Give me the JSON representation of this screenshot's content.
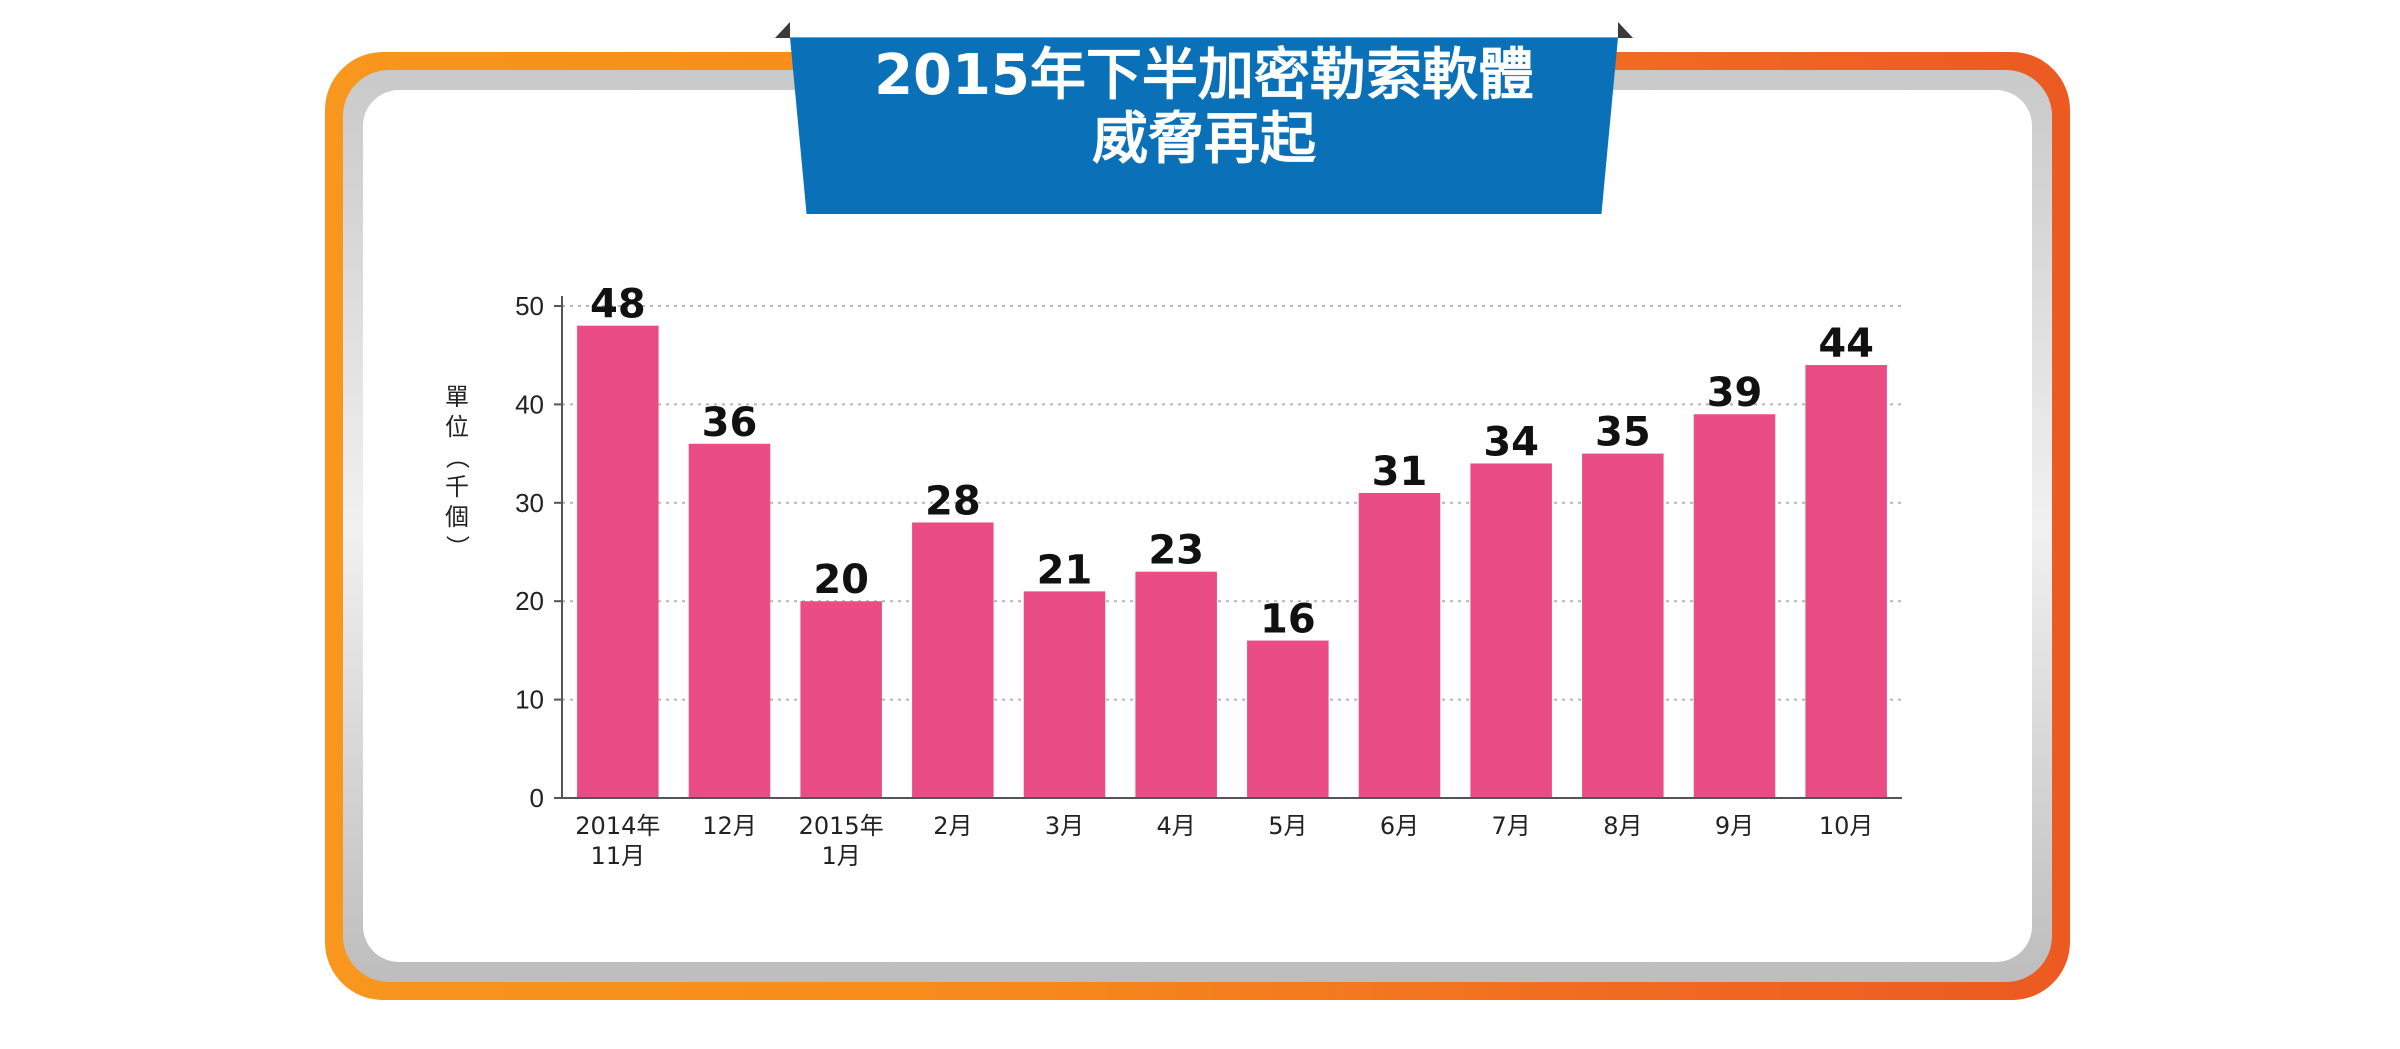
{
  "chart_data": {
    "type": "bar",
    "title_lines": [
      "2015年下半加密勒索軟體",
      "威脅再起"
    ],
    "ylabel": "單位（千個）",
    "xlabel": "",
    "ylim": [
      0,
      50
    ],
    "yticks": [
      0,
      10,
      20,
      30,
      40,
      50
    ],
    "grid": true,
    "categories": [
      [
        "2014年",
        "11月"
      ],
      [
        "12月"
      ],
      [
        "2015年",
        "1月"
      ],
      [
        "2月"
      ],
      [
        "3月"
      ],
      [
        "4月"
      ],
      [
        "5月"
      ],
      [
        "6月"
      ],
      [
        "7月"
      ],
      [
        "8月"
      ],
      [
        "9月"
      ],
      [
        "10月"
      ]
    ],
    "values": [
      48,
      36,
      20,
      28,
      21,
      23,
      16,
      31,
      34,
      35,
      39,
      44
    ],
    "colors": {
      "bar": "#e94d84",
      "banner": "#0a70b8",
      "frame_start": "#f8961d",
      "frame_end": "#ec5a22",
      "grid": "#b5b5b5"
    }
  }
}
